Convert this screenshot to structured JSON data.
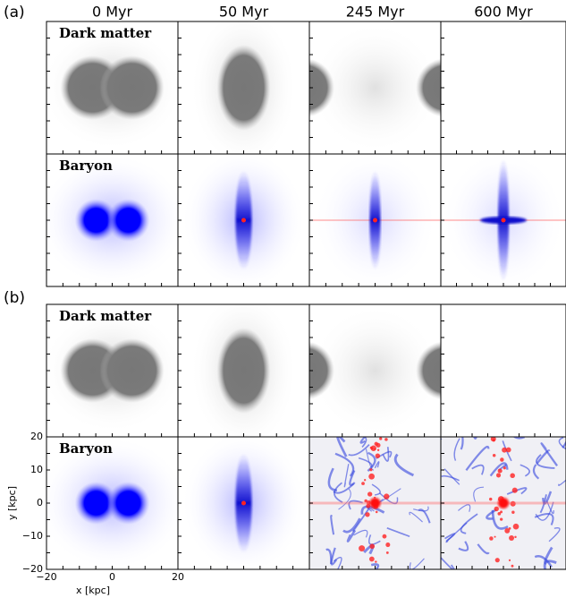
{
  "columns": [
    "0 Myr",
    "50 Myr",
    "245 Myr",
    "600 Myr"
  ],
  "sections": [
    {
      "label": "(a)",
      "rows": [
        "Dark matter",
        "Baryon"
      ]
    },
    {
      "label": "(b)",
      "rows": [
        "Dark matter",
        "Baryon"
      ]
    }
  ],
  "axes": {
    "y_label": "y [kpc]",
    "x_label": "x [kpc]",
    "y_ticks": [
      "20",
      "10",
      "0",
      "−10",
      "−20"
    ],
    "x_ticks": [
      "−20",
      "0",
      "20"
    ]
  }
}
